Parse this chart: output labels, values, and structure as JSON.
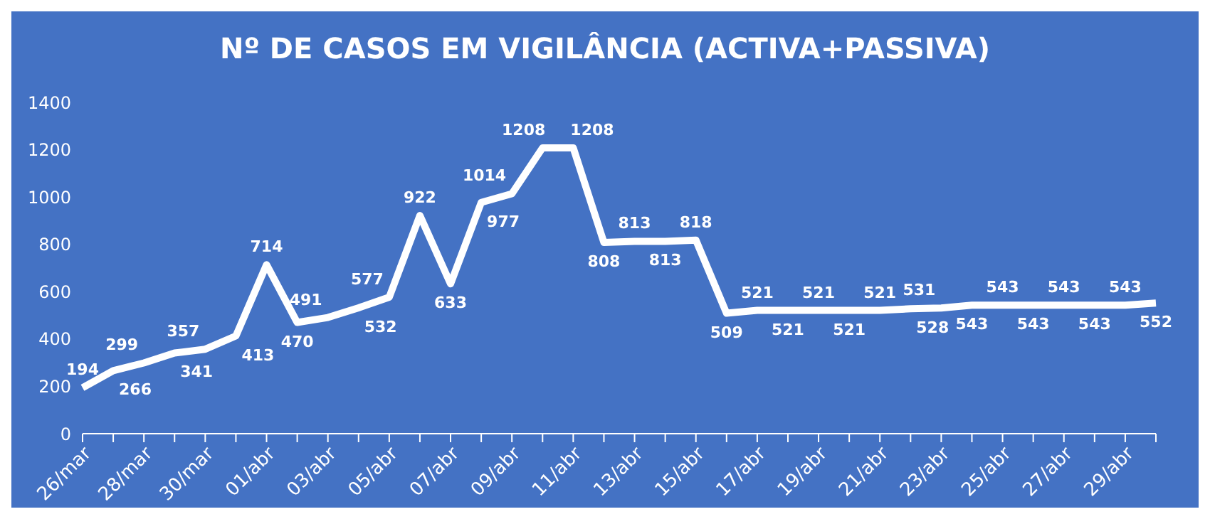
{
  "chart_data": {
    "type": "line",
    "title": "Nº DE CASOS EM VIGILÂNCIA (ACTIVA+PASSIVA)",
    "categories": [
      "26/mar",
      null,
      "28/mar",
      null,
      "30/mar",
      null,
      "01/abr",
      null,
      "03/abr",
      null,
      "05/abr",
      null,
      "07/abr",
      null,
      "09/abr",
      null,
      "11/abr",
      null,
      "13/abr",
      null,
      "15/abr",
      null,
      "17/abr",
      null,
      "19/abr",
      null,
      "21/abr",
      null,
      "23/abr",
      null,
      "25/abr",
      null,
      "27/abr",
      null,
      "29/abr",
      null
    ],
    "series": [
      {
        "color": "#ffffff",
        "values": [
          194,
          266,
          299,
          341,
          357,
          413,
          714,
          470,
          491,
          532,
          577,
          922,
          633,
          977,
          1014,
          1208,
          1208,
          808,
          813,
          813,
          818,
          509,
          521,
          521,
          521,
          521,
          521,
          528,
          531,
          543,
          543,
          543,
          543,
          543,
          543,
          552
        ]
      }
    ],
    "ylim": [
      0,
      1400
    ],
    "yticks": [
      0,
      200,
      400,
      600,
      800,
      1000,
      1200,
      1400
    ],
    "grid": false,
    "legend": false,
    "data_labels": true,
    "marker": "none",
    "line_style": "solid"
  }
}
